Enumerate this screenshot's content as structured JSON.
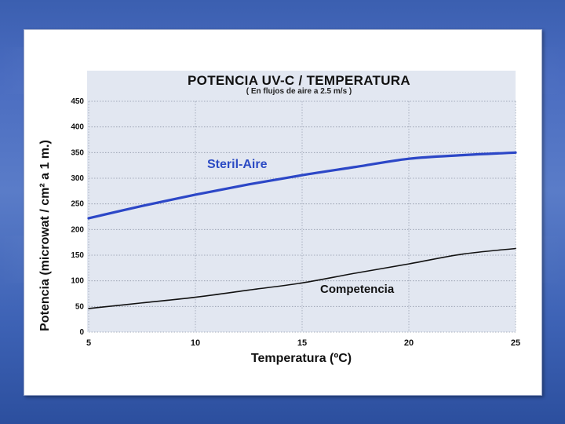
{
  "colors": {
    "steril": "#2c47c7",
    "competencia": "#111111"
  },
  "chart_data": {
    "type": "line",
    "title": "POTENCIA UV-C / TEMPERATURA",
    "subtitle": "( En flujos de aire a 2.5 m/s )",
    "xlabel": "Temperatura (ºC)",
    "ylabel": "Potencia (microwat / cm² a 1 m.)",
    "xlim": [
      5,
      25
    ],
    "ylim": [
      0,
      450
    ],
    "xticks": [
      5,
      10,
      15,
      20,
      25
    ],
    "yticks": [
      0,
      50,
      100,
      150,
      200,
      250,
      300,
      350,
      400,
      450
    ],
    "grid": true,
    "series": [
      {
        "name": "Steril-Aire",
        "x": [
          5,
          7.5,
          10,
          12.5,
          15,
          17.5,
          20,
          22.5,
          25
        ],
        "y": [
          222,
          246,
          268,
          288,
          306,
          322,
          338,
          345,
          350
        ]
      },
      {
        "name": "Competencia",
        "x": [
          5,
          7.5,
          10,
          12.5,
          15,
          17.5,
          20,
          22.5,
          25
        ],
        "y": [
          46,
          57,
          68,
          82,
          96,
          115,
          133,
          152,
          163
        ]
      }
    ]
  }
}
